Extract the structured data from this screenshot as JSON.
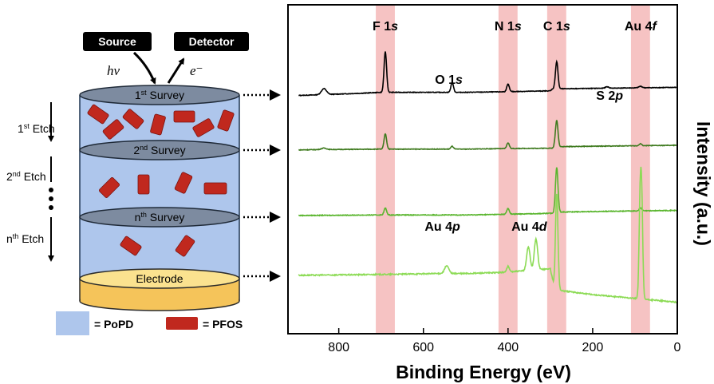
{
  "colors": {
    "popd_fill": "#aec6ec",
    "pfos_fill": "#c0281e",
    "electrode_fill": "#f5c45a",
    "highlight_band": "#f4b8b8",
    "trace_1": "#000000",
    "trace_2": "#3e7a1e",
    "trace_3": "#59b52d",
    "trace_4": "#8cdb55"
  },
  "schematic": {
    "source_label": "Source",
    "detector_label": "Detector",
    "photon_label": "hν",
    "electron_label": "e⁻",
    "surveys": [
      {
        "num": "1",
        "sup": "st",
        "word": " Survey"
      },
      {
        "num": "2",
        "sup": "nd",
        "word": " Survey"
      },
      {
        "num": "n",
        "sup": "th",
        "word": " Survey"
      }
    ],
    "etches": [
      {
        "num": "1",
        "sup": "st",
        "word": " Etch"
      },
      {
        "num": "2",
        "sup": "nd",
        "word": " Etch"
      },
      {
        "num": "n",
        "sup": "th",
        "word": " Etch"
      }
    ],
    "electrode_label": "Electrode",
    "legend": {
      "popd_label": "= PoPD",
      "pfos_label": "= PFOS"
    }
  },
  "chart_data": {
    "type": "line",
    "xlabel": "Binding Energy (eV)",
    "ylabel": "Intensity (a.u.)",
    "xlim": [
      920,
      0
    ],
    "x_reversed": true,
    "x_ticks": [
      800,
      600,
      400,
      200,
      0
    ],
    "grid": false,
    "highlight_bands": [
      {
        "label": "F 1",
        "orbital": "s",
        "x": 690,
        "width": 45
      },
      {
        "label": "N 1",
        "orbital": "s",
        "x": 400,
        "width": 45
      },
      {
        "label": "C 1",
        "orbital": "s",
        "x": 285,
        "width": 45
      },
      {
        "label": "Au 4",
        "orbital": "f",
        "x": 87,
        "width": 45
      }
    ],
    "peak_labels": [
      {
        "label": "O 1",
        "orbital": "s",
        "x": 540
      },
      {
        "label": "S 2",
        "orbital": "p",
        "x": 160
      },
      {
        "label": "Au 4",
        "orbital": "p",
        "x": 555
      },
      {
        "label": "Au 4",
        "orbital": "d",
        "x": 350
      }
    ],
    "series": [
      {
        "color": "#000000",
        "baseline": [
          [
            920,
            0.0
          ],
          [
            850,
            0.02
          ],
          [
            750,
            0.05
          ],
          [
            700,
            0.07
          ],
          [
            600,
            0.07
          ],
          [
            500,
            0.07
          ],
          [
            420,
            0.08
          ],
          [
            300,
            0.1
          ],
          [
            295,
            0.14
          ],
          [
            200,
            0.15
          ],
          [
            100,
            0.16
          ],
          [
            0,
            0.17
          ]
        ],
        "peaks": [
          [
            835,
            0.12,
            6
          ],
          [
            690,
            0.82,
            3
          ],
          [
            532,
            0.2,
            3
          ],
          [
            400,
            0.15,
            3
          ],
          [
            285,
            0.55,
            3
          ],
          [
            166,
            0.03,
            4
          ],
          [
            87,
            0.03,
            4
          ]
        ]
      },
      {
        "color": "#3e7a1e",
        "baseline": [
          [
            920,
            0.0
          ],
          [
            850,
            0.01
          ],
          [
            700,
            0.02
          ],
          [
            500,
            0.02
          ],
          [
            420,
            0.03
          ],
          [
            295,
            0.04
          ],
          [
            290,
            0.07
          ],
          [
            200,
            0.08
          ],
          [
            100,
            0.09
          ],
          [
            0,
            0.1
          ]
        ],
        "peaks": [
          [
            835,
            0.03,
            6
          ],
          [
            690,
            0.32,
            3
          ],
          [
            532,
            0.06,
            3
          ],
          [
            400,
            0.12,
            3
          ],
          [
            285,
            0.55,
            3
          ],
          [
            87,
            0.04,
            3
          ]
        ]
      },
      {
        "color": "#59b52d",
        "baseline": [
          [
            920,
            0.0
          ],
          [
            700,
            0.01
          ],
          [
            500,
            0.01
          ],
          [
            420,
            0.02
          ],
          [
            290,
            0.04
          ],
          [
            285,
            0.06
          ],
          [
            200,
            0.07
          ],
          [
            100,
            0.08
          ],
          [
            0,
            0.09
          ]
        ],
        "peaks": [
          [
            690,
            0.12,
            3
          ],
          [
            400,
            0.1,
            3
          ],
          [
            285,
            0.78,
            3
          ],
          [
            87,
            0.05,
            3
          ]
        ]
      },
      {
        "color": "#8cdb55",
        "baseline": [
          [
            920,
            0.0
          ],
          [
            700,
            0.01
          ],
          [
            560,
            0.02
          ],
          [
            500,
            0.02
          ],
          [
            420,
            0.03
          ],
          [
            355,
            0.05
          ],
          [
            300,
            0.07
          ],
          [
            290,
            -0.15
          ],
          [
            200,
            -0.2
          ],
          [
            100,
            -0.24
          ],
          [
            0,
            -0.28
          ]
        ],
        "peaks": [
          [
            545,
            0.08,
            5
          ],
          [
            400,
            0.06,
            3
          ],
          [
            352,
            0.25,
            4
          ],
          [
            334,
            0.32,
            4
          ],
          [
            285,
            1.0,
            3
          ],
          [
            88,
            0.95,
            2.5
          ],
          [
            84,
            0.95,
            2.5
          ]
        ]
      }
    ]
  }
}
